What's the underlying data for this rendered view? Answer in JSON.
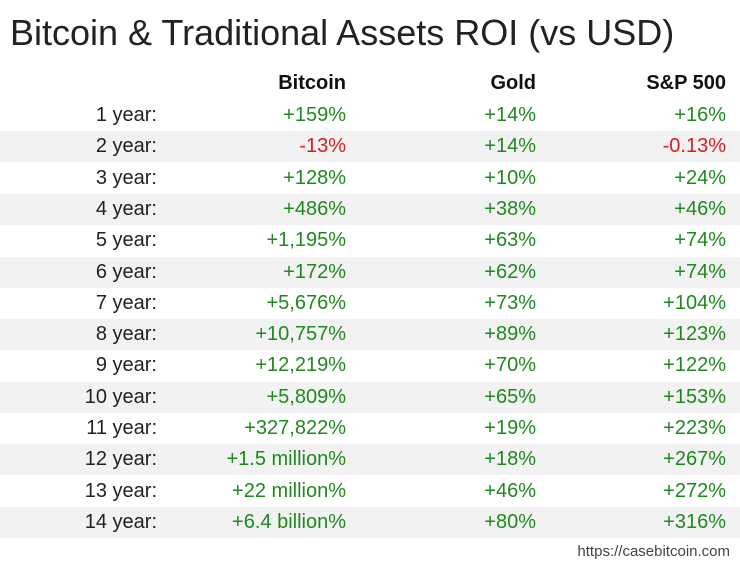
{
  "colors": {
    "positive": "#1e8a1e",
    "negative": "#e01b1b",
    "text": "#222222",
    "shade": "#f2f2f2"
  },
  "title": "Bitcoin & Traditional Assets ROI (vs USD)",
  "footer": "https://casebitcoin.com",
  "chart_data": {
    "type": "table",
    "title": "Bitcoin & Traditional Assets ROI (vs USD)",
    "columns": [
      "",
      "Bitcoin",
      "Gold",
      "S&P 500"
    ],
    "rows": [
      {
        "label": "1 year:",
        "values": [
          "+159%",
          "+14%",
          "+16%"
        ],
        "negative": [
          false,
          false,
          false
        ]
      },
      {
        "label": "2 year:",
        "values": [
          "-13%",
          "+14%",
          "-0.13%"
        ],
        "negative": [
          true,
          false,
          true
        ]
      },
      {
        "label": "3 year:",
        "values": [
          "+128%",
          "+10%",
          "+24%"
        ],
        "negative": [
          false,
          false,
          false
        ]
      },
      {
        "label": "4 year:",
        "values": [
          "+486%",
          "+38%",
          "+46%"
        ],
        "negative": [
          false,
          false,
          false
        ]
      },
      {
        "label": "5 year:",
        "values": [
          "+1,195%",
          "+63%",
          "+74%"
        ],
        "negative": [
          false,
          false,
          false
        ]
      },
      {
        "label": "6 year:",
        "values": [
          "+172%",
          "+62%",
          "+74%"
        ],
        "negative": [
          false,
          false,
          false
        ]
      },
      {
        "label": "7 year:",
        "values": [
          "+5,676%",
          "+73%",
          "+104%"
        ],
        "negative": [
          false,
          false,
          false
        ]
      },
      {
        "label": "8 year:",
        "values": [
          "+10,757%",
          "+89%",
          "+123%"
        ],
        "negative": [
          false,
          false,
          false
        ]
      },
      {
        "label": "9 year:",
        "values": [
          "+12,219%",
          "+70%",
          "+122%"
        ],
        "negative": [
          false,
          false,
          false
        ]
      },
      {
        "label": "10 year:",
        "values": [
          "+5,809%",
          "+65%",
          "+153%"
        ],
        "negative": [
          false,
          false,
          false
        ]
      },
      {
        "label": "11 year:",
        "values": [
          "+327,822%",
          "+19%",
          "+223%"
        ],
        "negative": [
          false,
          false,
          false
        ]
      },
      {
        "label": "12 year:",
        "values": [
          "+1.5 million%",
          "+18%",
          "+267%"
        ],
        "negative": [
          false,
          false,
          false
        ]
      },
      {
        "label": "13 year:",
        "values": [
          "+22 million%",
          "+46%",
          "+272%"
        ],
        "negative": [
          false,
          false,
          false
        ]
      },
      {
        "label": "14 year:",
        "values": [
          "+6.4 billion%",
          "+80%",
          "+316%"
        ],
        "negative": [
          false,
          false,
          false
        ]
      }
    ]
  }
}
